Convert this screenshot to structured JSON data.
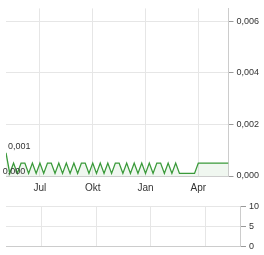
{
  "chart_data": [
    {
      "type": "line",
      "categories": [
        null,
        null,
        null,
        null,
        null,
        null,
        null,
        null,
        null,
        "Jul",
        null,
        null,
        null,
        null,
        null,
        null,
        null,
        null,
        null,
        null,
        null,
        null,
        null,
        "Okt",
        null,
        null,
        null,
        null,
        null,
        null,
        null,
        null,
        null,
        null,
        null,
        null,
        null,
        "Jan",
        null,
        null,
        null,
        null,
        null,
        null,
        null,
        null,
        null,
        null,
        null,
        null,
        null,
        "Apr",
        null,
        null,
        null,
        null,
        null,
        null,
        null,
        null
      ],
      "values": [
        0.0009,
        0.0001,
        0.0005,
        0.0001,
        0.0005,
        0.0005,
        0.0001,
        0.0005,
        0.0001,
        0.0005,
        0.0001,
        0.0005,
        0.0005,
        0.0001,
        0.0005,
        0.0001,
        0.0005,
        0.0001,
        0.0005,
        0.0001,
        0.0005,
        0.0005,
        0.0001,
        0.0005,
        0.0001,
        0.0005,
        0.0001,
        0.0005,
        0.0001,
        0.0005,
        0.0005,
        0.0001,
        0.0005,
        0.0001,
        0.0005,
        0.0001,
        0.0005,
        0.0001,
        0.0005,
        0.0001,
        0.0005,
        0.0005,
        0.0001,
        0.0005,
        0.0001,
        0.0005,
        0.0001,
        0.0001,
        0.0001,
        0.0001,
        0.0001,
        0.0005,
        0.0005,
        0.0005,
        0.0005,
        0.0005,
        0.0005,
        0.0005,
        0.0005,
        0.0005
      ],
      "color": "#3a9a3a",
      "ylim": [
        0,
        0.0065
      ],
      "yticks": [
        {
          "value": 0,
          "label": "0,000"
        },
        {
          "value": 0.002,
          "label": "0,002"
        },
        {
          "value": 0.004,
          "label": "0,004"
        },
        {
          "value": 0.006,
          "label": "0,006"
        }
      ],
      "annotations": [
        {
          "text": "0,001",
          "index": 0
        },
        {
          "text": "0,000",
          "index": 1
        }
      ],
      "grid": true
    },
    {
      "type": "bar",
      "categories": [
        null,
        null,
        null,
        null,
        null,
        null,
        null,
        null,
        null,
        "Jul",
        null,
        null,
        null,
        null,
        null,
        null,
        null,
        null,
        null,
        null,
        null,
        null,
        null,
        "Okt",
        null,
        null,
        null,
        null,
        null,
        null,
        null,
        null,
        null,
        null,
        null,
        null,
        null,
        "Jan",
        null,
        null,
        null,
        null,
        null,
        null,
        null,
        null,
        null,
        null,
        null,
        null,
        null,
        "Apr",
        null,
        null,
        null,
        null,
        null,
        null,
        null,
        null
      ],
      "values": [
        0,
        0,
        0,
        0,
        0,
        0,
        0,
        0,
        0,
        0,
        0,
        0,
        0,
        0,
        0,
        0,
        0,
        0,
        0,
        0,
        0,
        0,
        0,
        0,
        0,
        0,
        0,
        0,
        0,
        0,
        0,
        0,
        0,
        0,
        0,
        0,
        0,
        0,
        0,
        0,
        0,
        0,
        0,
        0,
        0,
        0,
        0,
        0,
        0,
        0,
        0,
        0,
        0,
        0,
        0,
        0,
        0,
        0,
        0,
        0
      ],
      "color": "#3a9a3a",
      "ylim": [
        0,
        10
      ],
      "yticks": [
        0,
        5,
        10
      ],
      "tick_labels": "y",
      "grid": true
    }
  ]
}
